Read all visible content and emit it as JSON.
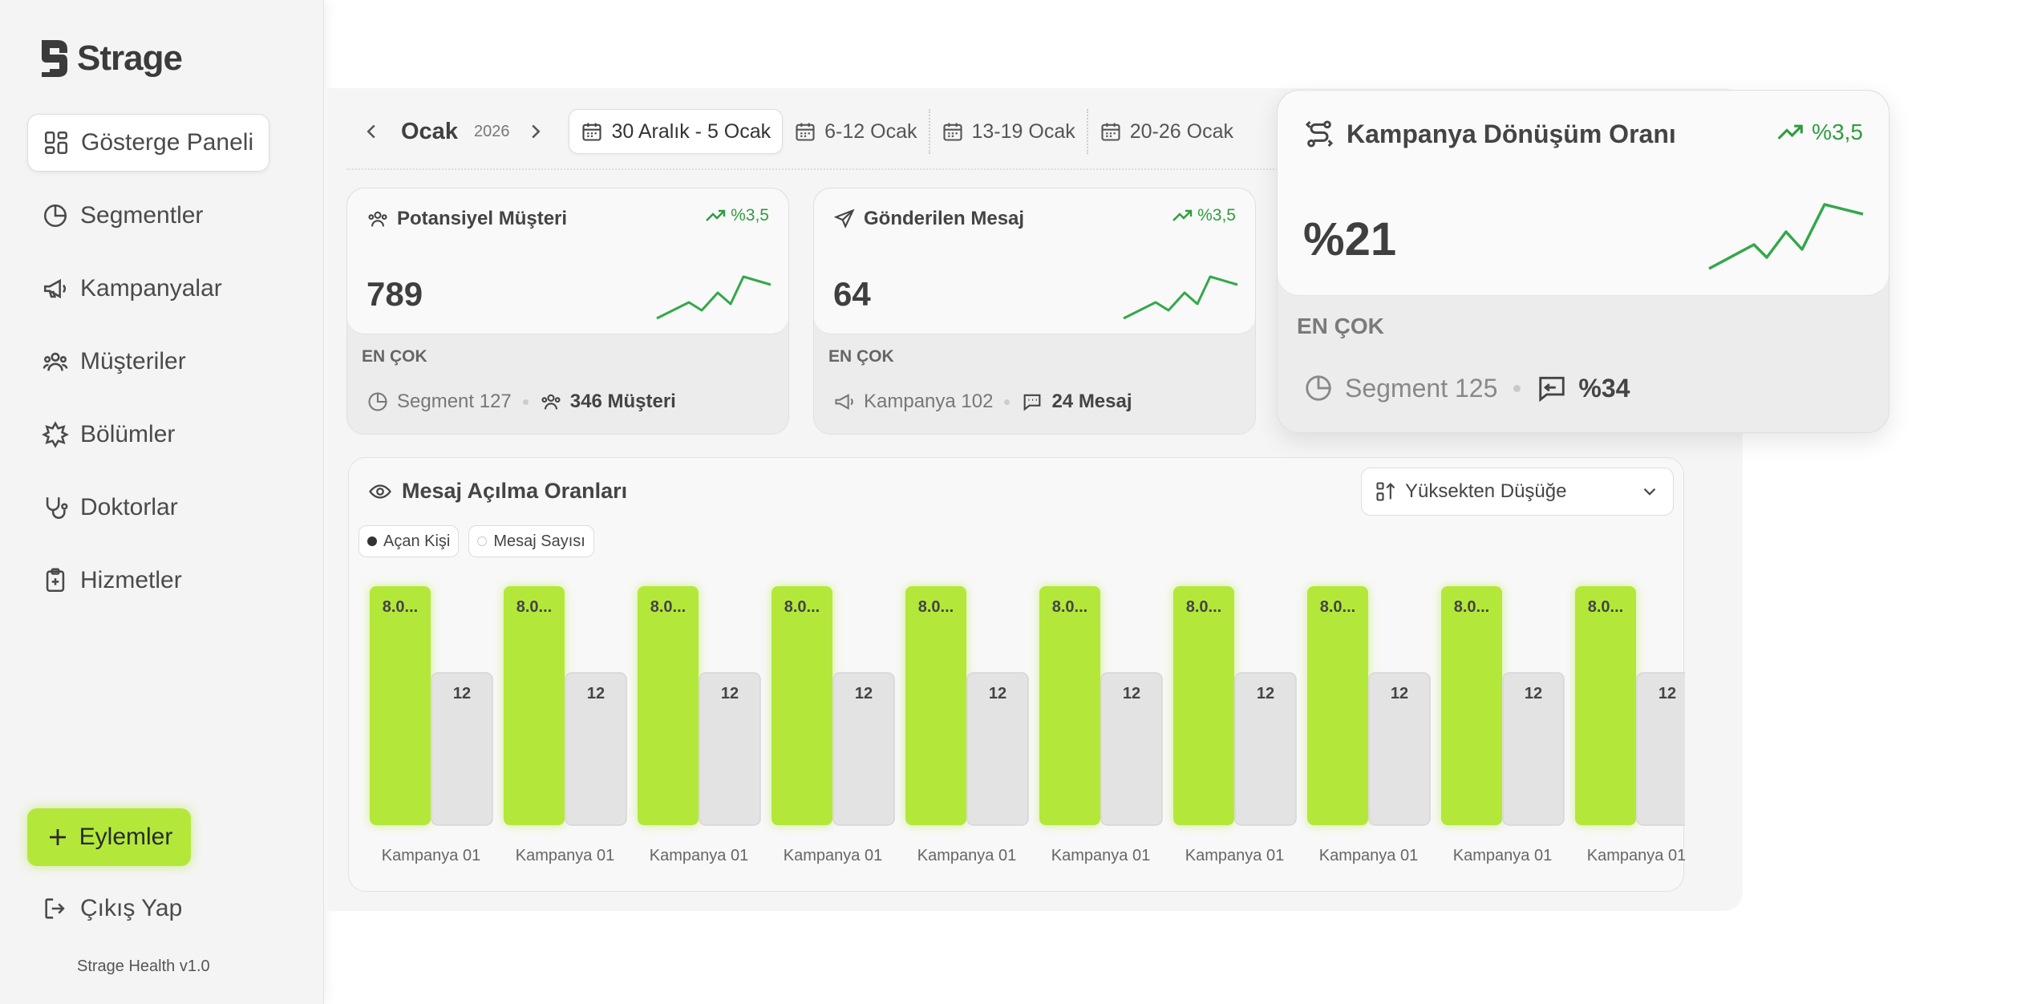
{
  "app": {
    "brand": "Strage",
    "version": "Strage Health v1.0"
  },
  "sidebar": {
    "items": [
      {
        "label": "Gösterge Paneli",
        "icon": "dashboard-icon",
        "active": true
      },
      {
        "label": "Segmentler",
        "icon": "pie-chart-icon"
      },
      {
        "label": "Kampanyalar",
        "icon": "megaphone-icon"
      },
      {
        "label": "Müşteriler",
        "icon": "users-icon"
      },
      {
        "label": "Bölümler",
        "icon": "medical-cross-icon"
      },
      {
        "label": "Doktorlar",
        "icon": "stethoscope-icon"
      },
      {
        "label": "Hizmetler",
        "icon": "clipboard-plus-icon"
      }
    ],
    "actions_label": "Eylemler",
    "logout_label": "Çıkış Yap"
  },
  "datebar": {
    "month": "Ocak",
    "year": "2026",
    "weeks": [
      {
        "label": "30 Aralık - 5 Ocak",
        "active": true
      },
      {
        "label": "6-12 Ocak"
      },
      {
        "label": "13-19 Ocak"
      },
      {
        "label": "20-26 Ocak"
      }
    ]
  },
  "cards": [
    {
      "title": "Potansiyel Müşteri",
      "icon": "users-icon",
      "trend": "%3,5",
      "value": "789",
      "most_label": "EN ÇOK",
      "foot_left": "Segment 127",
      "foot_left_icon": "pie-chart-icon",
      "foot_right": "346 Müşteri",
      "foot_right_icon": "users-icon"
    },
    {
      "title": "Gönderilen Mesaj",
      "icon": "send-icon",
      "trend": "%3,5",
      "value": "64",
      "most_label": "EN ÇOK",
      "foot_left": "Kampanya 102",
      "foot_left_icon": "megaphone-icon",
      "foot_right": "24 Mesaj",
      "foot_right_icon": "message-icon"
    }
  ],
  "highlight_card": {
    "title": "Kampanya Dönüşüm Oranı",
    "icon": "route-icon",
    "trend": "%3,5",
    "value": "%21",
    "most_label": "EN ÇOK",
    "foot_left": "Segment 125",
    "foot_left_icon": "pie-chart-icon",
    "foot_right": "%34",
    "foot_right_icon": "reply-message-icon"
  },
  "chart_panel": {
    "title": "Mesaj Açılma Oranları",
    "sort_label": "Yüksekten Düşüğe",
    "legend": [
      {
        "label": "Açan Kişi",
        "color": "#333333"
      },
      {
        "label": "Mesaj Sayısı",
        "color": "#e0e0e0"
      }
    ]
  },
  "chart_data": {
    "type": "bar",
    "categories": [
      "Kampanya 01",
      "Kampanya 01",
      "Kampanya 01",
      "Kampanya 01",
      "Kampanya 01",
      "Kampanya 01",
      "Kampanya 01",
      "Kampanya 01",
      "Kampanya 01",
      "Kampanya 01"
    ],
    "series": [
      {
        "name": "Açan Kişi",
        "color": "#b3e83a",
        "values": [
          8000,
          8000,
          8000,
          8000,
          8000,
          8000,
          8000,
          8000,
          8000,
          8000
        ],
        "labels": [
          "8.0...",
          "8.0...",
          "8.0...",
          "8.0...",
          "8.0...",
          "8.0...",
          "8.0...",
          "8.0...",
          "8.0...",
          "8.0..."
        ]
      },
      {
        "name": "Mesaj Sayısı",
        "color": "#e3e3e3",
        "values": [
          12,
          12,
          12,
          12,
          12,
          12,
          12,
          12,
          12,
          12
        ],
        "labels": [
          "12",
          "12",
          "12",
          "12",
          "12",
          "12",
          "12",
          "12",
          "12",
          "12"
        ]
      }
    ],
    "title": "Mesaj Açılma Oranları",
    "xlabel": "",
    "ylabel": "",
    "grid": false,
    "legend": "top-left"
  }
}
